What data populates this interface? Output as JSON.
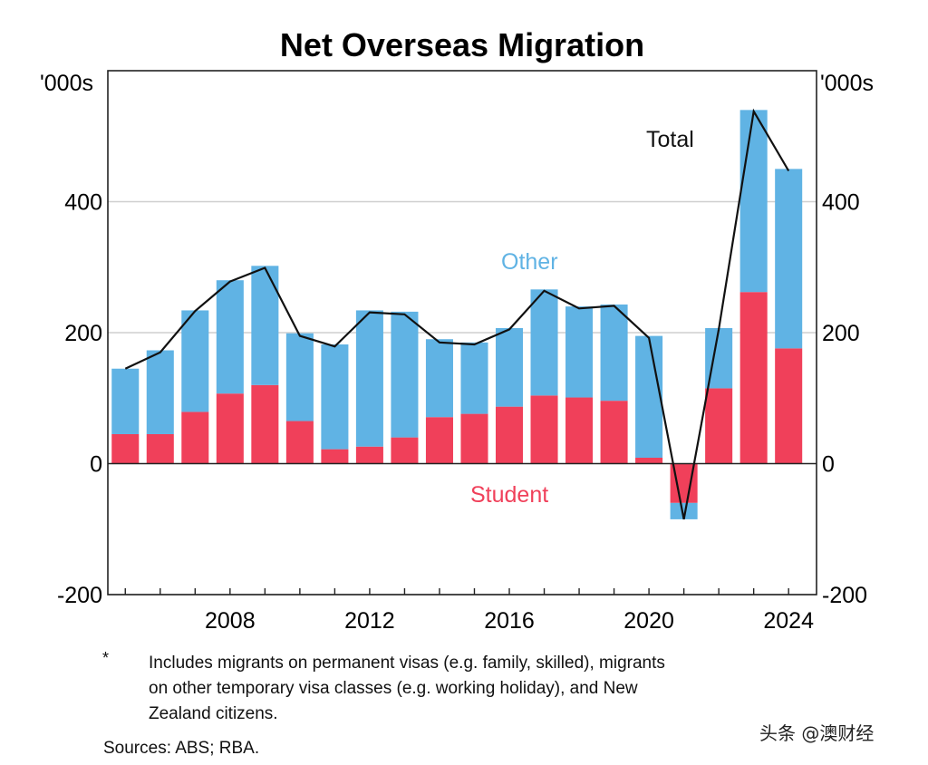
{
  "chart_data": {
    "type": "bar",
    "stacked": true,
    "title": "Net Overseas Migration",
    "unit_left": "'000s",
    "unit_right": "'000s",
    "x": [
      2005,
      2006,
      2007,
      2008,
      2009,
      2010,
      2011,
      2012,
      2013,
      2014,
      2015,
      2016,
      2017,
      2018,
      2019,
      2020,
      2021,
      2022,
      2023,
      2024
    ],
    "x_ticks": [
      2008,
      2012,
      2016,
      2020,
      2024
    ],
    "xlim": [
      2004.5,
      2024.8
    ],
    "ylim": [
      -200,
      600
    ],
    "y_ticks": [
      -200,
      0,
      200,
      400
    ],
    "grid": true,
    "series": [
      {
        "name": "Student",
        "color": "#f0405a",
        "values": [
          45,
          45,
          79,
          107,
          120,
          65,
          22,
          26,
          40,
          71,
          76,
          87,
          104,
          101,
          96,
          9,
          -60,
          115,
          262,
          176
        ]
      },
      {
        "name": "Other",
        "color": "#60b3e4",
        "values": [
          100,
          128,
          155,
          173,
          182,
          134,
          160,
          208,
          192,
          119,
          109,
          120,
          162,
          139,
          147,
          186,
          -25,
          92,
          278,
          274
        ]
      },
      {
        "name": "Total",
        "type": "line",
        "color": "#111111",
        "values": [
          145,
          170,
          233,
          278,
          299,
          195,
          179,
          231,
          228,
          185,
          182,
          205,
          264,
          237,
          241,
          192,
          -85,
          205,
          538,
          447
        ]
      }
    ]
  },
  "footnote": {
    "marker": "*",
    "lines": [
      "Includes migrants on permanent visas (e.g. family, skilled), migrants",
      "on other temporary visa classes (e.g. working holiday), and New",
      "Zealand citizens."
    ],
    "sources": "Sources: ABS; RBA."
  },
  "watermark": "头条 @澳财经"
}
